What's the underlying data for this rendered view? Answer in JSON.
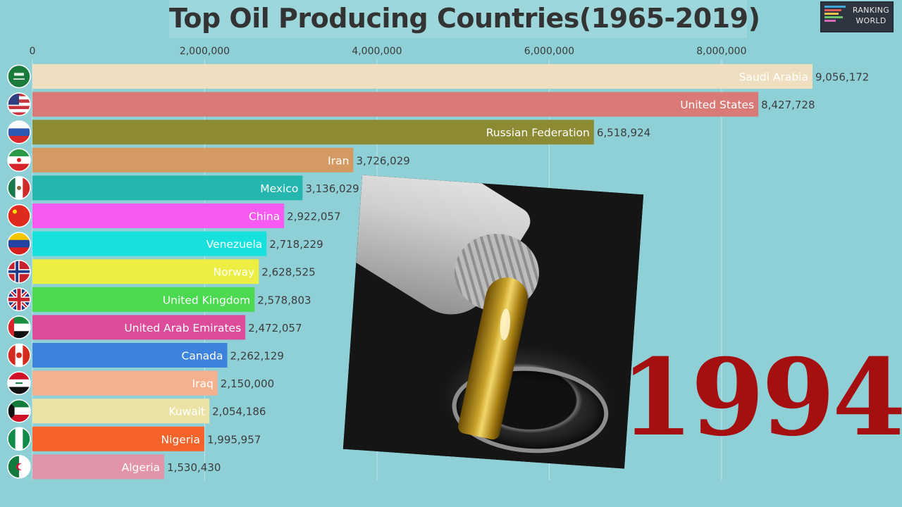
{
  "title": "Top Oil Producing Countries(1965-2019)",
  "logo": {
    "line1": "RANKING",
    "line2": "WORLD"
  },
  "year": "1994",
  "chart_data": {
    "type": "bar",
    "orientation": "horizontal",
    "title": "Top Oil Producing Countries(1965-2019)",
    "xlim": [
      0,
      9056172
    ],
    "x_ticks": [
      0,
      2000000,
      4000000,
      6000000,
      8000000
    ],
    "x_tick_labels": [
      "0",
      "2,000,000",
      "4,000,000",
      "6,000,000",
      "8,000,000"
    ],
    "grid": true,
    "categories": [
      "Saudi Arabia",
      "United States",
      "Russian Federation",
      "Iran",
      "Mexico",
      "China",
      "Venezuela",
      "Norway",
      "United Kingdom",
      "United Arab Emirates",
      "Canada",
      "Iraq",
      "Kuwait",
      "Nigeria",
      "Algeria"
    ],
    "values": [
      9056172,
      8427728,
      6518924,
      3726029,
      3136029,
      2922057,
      2718229,
      2628525,
      2578803,
      2472057,
      2262129,
      2150000,
      2054186,
      1995957,
      1530430
    ],
    "value_labels": [
      "9,056,172",
      "8,427,728",
      "6,518,924",
      "3,726,029",
      "3,136,029",
      "2,922,057",
      "2,718,229",
      "2,628,525",
      "2,578,803",
      "2,472,057",
      "2,262,129",
      "2,150,000",
      "2,054,186",
      "1,995,957",
      "1,530,430"
    ],
    "colors": [
      "#efdfc0",
      "#d97a76",
      "#8c8a33",
      "#d49a64",
      "#25b6b0",
      "#f65af0",
      "#18e0dd",
      "#ecee44",
      "#4ad94f",
      "#dc4c9a",
      "#3d82dc",
      "#f5b090",
      "#ebe2a6",
      "#f6632a",
      "#e294ab"
    ],
    "flag_icons": [
      "flag-saudi-arabia-icon",
      "flag-united-states-icon",
      "flag-russia-icon",
      "flag-iran-icon",
      "flag-mexico-icon",
      "flag-china-icon",
      "flag-venezuela-icon",
      "flag-norway-icon",
      "flag-united-kingdom-icon",
      "flag-uae-icon",
      "flag-canada-icon",
      "flag-iraq-icon",
      "flag-kuwait-icon",
      "flag-nigeria-icon",
      "flag-algeria-icon"
    ],
    "annotation": "1994"
  },
  "image": {
    "icon": "oil-pouring-photo"
  }
}
